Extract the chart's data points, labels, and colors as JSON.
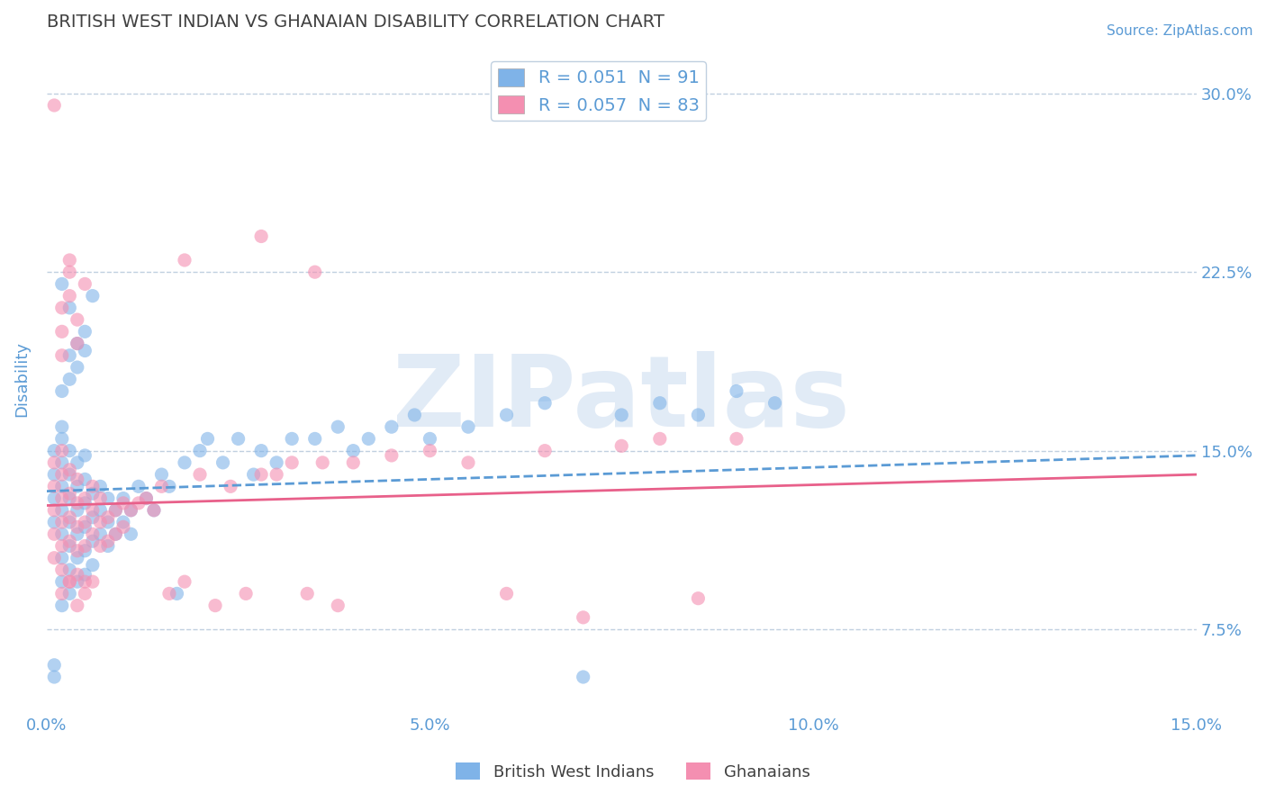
{
  "title": "BRITISH WEST INDIAN VS GHANAIAN DISABILITY CORRELATION CHART",
  "source_text": "Source: ZipAtlas.com",
  "ylabel": "Disability",
  "xlim": [
    0.0,
    0.15
  ],
  "ylim": [
    0.04,
    0.32
  ],
  "yticks": [
    0.075,
    0.15,
    0.225,
    0.3
  ],
  "ytick_labels": [
    "7.5%",
    "15.0%",
    "22.5%",
    "30.0%"
  ],
  "xticks": [
    0.0,
    0.05,
    0.1,
    0.15
  ],
  "xtick_labels": [
    "0.0%",
    "5.0%",
    "10.0%",
    "15.0%"
  ],
  "blue_color": "#7fb3e8",
  "pink_color": "#f48fb1",
  "blue_line_color": "#5b9bd5",
  "pink_line_color": "#e8608a",
  "blue_R": 0.051,
  "blue_N": 91,
  "pink_R": 0.057,
  "pink_N": 83,
  "watermark": "ZIPatlas",
  "watermark_color": "#c5d8ee",
  "legend_label_blue": "British West Indians",
  "legend_label_pink": "Ghanaians",
  "title_color": "#404040",
  "axis_label_color": "#5b9bd5",
  "tick_color": "#5b9bd5",
  "grid_color": "#c0d0e0",
  "background_color": "#ffffff",
  "blue_x": [
    0.001,
    0.001,
    0.001,
    0.001,
    0.001,
    0.002,
    0.002,
    0.002,
    0.002,
    0.002,
    0.002,
    0.002,
    0.002,
    0.002,
    0.003,
    0.003,
    0.003,
    0.003,
    0.003,
    0.003,
    0.003,
    0.004,
    0.004,
    0.004,
    0.004,
    0.004,
    0.004,
    0.005,
    0.005,
    0.005,
    0.005,
    0.005,
    0.005,
    0.006,
    0.006,
    0.006,
    0.006,
    0.007,
    0.007,
    0.007,
    0.008,
    0.008,
    0.008,
    0.009,
    0.009,
    0.01,
    0.01,
    0.011,
    0.011,
    0.012,
    0.013,
    0.014,
    0.015,
    0.016,
    0.017,
    0.018,
    0.02,
    0.021,
    0.023,
    0.025,
    0.027,
    0.028,
    0.03,
    0.032,
    0.035,
    0.038,
    0.04,
    0.042,
    0.045,
    0.048,
    0.05,
    0.055,
    0.06,
    0.065,
    0.07,
    0.075,
    0.08,
    0.085,
    0.09,
    0.095,
    0.002,
    0.003,
    0.005,
    0.006,
    0.004,
    0.003,
    0.002,
    0.004,
    0.003,
    0.005,
    0.001
  ],
  "blue_y": [
    0.13,
    0.14,
    0.12,
    0.15,
    0.055,
    0.125,
    0.135,
    0.115,
    0.145,
    0.105,
    0.155,
    0.095,
    0.16,
    0.085,
    0.12,
    0.13,
    0.11,
    0.14,
    0.1,
    0.15,
    0.09,
    0.125,
    0.115,
    0.135,
    0.105,
    0.145,
    0.095,
    0.118,
    0.128,
    0.108,
    0.138,
    0.098,
    0.148,
    0.122,
    0.112,
    0.132,
    0.102,
    0.125,
    0.115,
    0.135,
    0.12,
    0.13,
    0.11,
    0.125,
    0.115,
    0.13,
    0.12,
    0.125,
    0.115,
    0.135,
    0.13,
    0.125,
    0.14,
    0.135,
    0.09,
    0.145,
    0.15,
    0.155,
    0.145,
    0.155,
    0.14,
    0.15,
    0.145,
    0.155,
    0.155,
    0.16,
    0.15,
    0.155,
    0.16,
    0.165,
    0.155,
    0.16,
    0.165,
    0.17,
    0.055,
    0.165,
    0.17,
    0.165,
    0.175,
    0.17,
    0.22,
    0.21,
    0.2,
    0.215,
    0.195,
    0.18,
    0.175,
    0.185,
    0.19,
    0.192,
    0.06
  ],
  "pink_x": [
    0.001,
    0.001,
    0.001,
    0.001,
    0.001,
    0.002,
    0.002,
    0.002,
    0.002,
    0.002,
    0.002,
    0.002,
    0.003,
    0.003,
    0.003,
    0.003,
    0.003,
    0.004,
    0.004,
    0.004,
    0.004,
    0.004,
    0.005,
    0.005,
    0.005,
    0.005,
    0.006,
    0.006,
    0.006,
    0.007,
    0.007,
    0.007,
    0.008,
    0.008,
    0.009,
    0.009,
    0.01,
    0.01,
    0.011,
    0.012,
    0.013,
    0.014,
    0.015,
    0.016,
    0.018,
    0.02,
    0.022,
    0.024,
    0.026,
    0.028,
    0.03,
    0.032,
    0.034,
    0.036,
    0.038,
    0.04,
    0.045,
    0.05,
    0.055,
    0.06,
    0.065,
    0.07,
    0.075,
    0.08,
    0.085,
    0.09,
    0.003,
    0.004,
    0.005,
    0.006,
    0.002,
    0.003,
    0.004,
    0.005,
    0.002,
    0.003,
    0.001,
    0.004,
    0.002,
    0.003,
    0.018,
    0.028,
    0.035
  ],
  "pink_y": [
    0.125,
    0.135,
    0.115,
    0.145,
    0.105,
    0.12,
    0.13,
    0.11,
    0.14,
    0.1,
    0.15,
    0.09,
    0.122,
    0.132,
    0.112,
    0.142,
    0.095,
    0.118,
    0.128,
    0.108,
    0.138,
    0.098,
    0.12,
    0.11,
    0.13,
    0.095,
    0.125,
    0.115,
    0.135,
    0.12,
    0.11,
    0.13,
    0.122,
    0.112,
    0.125,
    0.115,
    0.128,
    0.118,
    0.125,
    0.128,
    0.13,
    0.125,
    0.135,
    0.09,
    0.095,
    0.14,
    0.085,
    0.135,
    0.09,
    0.14,
    0.14,
    0.145,
    0.09,
    0.145,
    0.085,
    0.145,
    0.148,
    0.15,
    0.145,
    0.09,
    0.15,
    0.08,
    0.152,
    0.155,
    0.088,
    0.155,
    0.095,
    0.085,
    0.09,
    0.095,
    0.21,
    0.215,
    0.205,
    0.22,
    0.2,
    0.225,
    0.295,
    0.195,
    0.19,
    0.23,
    0.23,
    0.24,
    0.225
  ]
}
